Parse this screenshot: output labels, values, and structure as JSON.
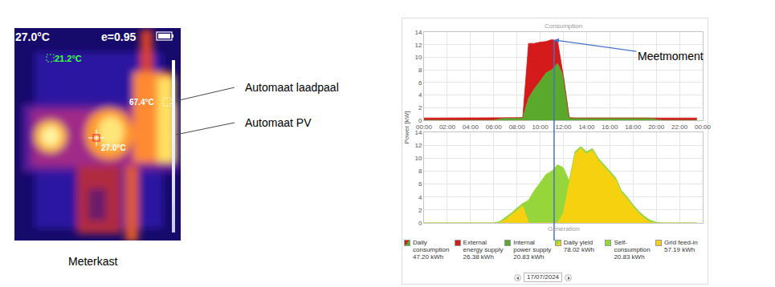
{
  "thermal_image": {
    "temperature": "27.0°C",
    "emissivity": "e=0.95",
    "spot_min": "21.2°C",
    "spot_hot": "67.4°C",
    "center": "27.0°C",
    "caption": "Meterkast",
    "callouts": [
      "Automaat laadpaal",
      "Automaat PV"
    ]
  },
  "y_label": "Power [kW]",
  "date": "17/07/2024",
  "chart_data": [
    {
      "type": "area",
      "title": "Consumption",
      "stacked": true,
      "grid": true,
      "total_label": "Daily consumption",
      "total": "47.20 kWh",
      "x": [
        0,
        0.5,
        1,
        1.5,
        2,
        2.5,
        3,
        3.5,
        4,
        4.5,
        5,
        5.5,
        6,
        6.5,
        7,
        7.5,
        8,
        8.5,
        9,
        9.5,
        10,
        10.5,
        11,
        11.5,
        12,
        12.5,
        13,
        13.5,
        14,
        14.5,
        15,
        15.5,
        16,
        16.5,
        17,
        17.5,
        18,
        18.5,
        19,
        19.5,
        20,
        20.5,
        21,
        21.5,
        22,
        22.5,
        23,
        23.5
      ],
      "xlim": [
        0,
        24
      ],
      "xticks": [
        {
          "value": 0,
          "label": "00:00"
        },
        {
          "value": 2,
          "label": "02:00"
        },
        {
          "value": 4,
          "label": "04:00"
        },
        {
          "value": 6,
          "label": "06:00"
        },
        {
          "value": 8,
          "label": "08:00"
        },
        {
          "value": 10,
          "label": "10:00"
        },
        {
          "value": 12,
          "label": "12:00"
        },
        {
          "value": 14,
          "label": "14:00"
        },
        {
          "value": 16,
          "label": "16:00"
        },
        {
          "value": 18,
          "label": "18:00"
        },
        {
          "value": 20,
          "label": "20:00"
        },
        {
          "value": 22,
          "label": "22:00"
        },
        {
          "value": 24,
          "label": "00:00"
        }
      ],
      "ylim": [
        0,
        14
      ],
      "yticks": [
        0,
        2,
        4,
        6,
        8,
        10,
        12,
        14
      ],
      "series": [
        {
          "name": "External energy supply",
          "color": "#d41a1a",
          "total": "26.38 kWh",
          "values": [
            0.35,
            0.35,
            0.35,
            0.35,
            0.35,
            0.35,
            0.35,
            0.35,
            0.35,
            0.35,
            0.35,
            0.35,
            0.35,
            0.15,
            0,
            0,
            0,
            0,
            8.7,
            7.2,
            6.2,
            5.0,
            4.8,
            3.6,
            0,
            0,
            0,
            0,
            0,
            0,
            0,
            0,
            0,
            0,
            0,
            0,
            0,
            0,
            0,
            0,
            0.25,
            0.35,
            0.35,
            0.35,
            0.35,
            0.35,
            0.35,
            0.35
          ]
        },
        {
          "name": "Internal power supply",
          "color": "#5aa82c",
          "total": "20.83 kWh",
          "values": [
            0,
            0,
            0,
            0,
            0,
            0,
            0,
            0,
            0,
            0,
            0,
            0,
            0,
            0.2,
            0.35,
            0.35,
            0.35,
            0.4,
            3.5,
            5.0,
            6.2,
            7.5,
            8.0,
            9.0,
            7.0,
            0.4,
            0.35,
            0.35,
            0.35,
            0.35,
            0.35,
            0.35,
            0.35,
            0.35,
            0.35,
            0.35,
            0.35,
            0.35,
            0.35,
            0.35,
            0.1,
            0,
            0,
            0,
            0,
            0,
            0,
            0
          ]
        }
      ],
      "annotations": [
        {
          "text": "Meetmoment",
          "x": 11.2
        }
      ]
    },
    {
      "type": "area",
      "title": "Generation",
      "stacked": true,
      "grid": true,
      "tick_labels": "y",
      "total_label": "Daily yield",
      "total": "78.02 kWh",
      "x": [
        0,
        0.5,
        1,
        1.5,
        2,
        2.5,
        3,
        3.5,
        4,
        4.5,
        5,
        5.5,
        6,
        6.5,
        7,
        7.5,
        8,
        8.5,
        9,
        9.5,
        10,
        10.5,
        11,
        11.5,
        12,
        12.5,
        13,
        13.5,
        14,
        14.5,
        15,
        15.5,
        16,
        16.5,
        17,
        17.5,
        18,
        18.5,
        19,
        19.5,
        20,
        20.5,
        21,
        21.5,
        22,
        22.5,
        23,
        23.5
      ],
      "xlim": [
        0,
        24
      ],
      "xticks": [
        0,
        2,
        4,
        6,
        8,
        10,
        12,
        14,
        16,
        18,
        20,
        22,
        24
      ],
      "ylim": [
        0,
        14
      ],
      "yticks": [
        0,
        2,
        4,
        6,
        8,
        10,
        12,
        14
      ],
      "series": [
        {
          "name": "Self-consumption",
          "color": "#97d63a",
          "total": "20.83 kWh",
          "values": [
            0,
            0,
            0,
            0,
            0,
            0,
            0,
            0,
            0,
            0,
            0,
            0,
            0,
            0.2,
            0.35,
            0.35,
            0.35,
            0.4,
            3.5,
            5.0,
            6.2,
            7.5,
            8.0,
            9.0,
            7.0,
            0.4,
            0.35,
            0.35,
            0.35,
            0.35,
            0.35,
            0.35,
            0.35,
            0.35,
            0.35,
            0.35,
            0.35,
            0.35,
            0.35,
            0.35,
            0.1,
            0,
            0,
            0,
            0,
            0,
            0,
            0
          ]
        },
        {
          "name": "Grid feed-in",
          "color": "#f5d10f",
          "total": "57.19 kWh",
          "values": [
            0,
            0,
            0,
            0,
            0,
            0,
            0,
            0,
            0,
            0,
            0,
            0,
            0,
            0,
            0.45,
            1.15,
            1.95,
            2.6,
            0,
            0,
            0,
            0,
            0,
            0,
            1.5,
            6.1,
            10.65,
            11.45,
            10.65,
            11.15,
            9.65,
            8.65,
            7.65,
            6.65,
            4.65,
            3.65,
            2.45,
            1.45,
            0.65,
            0.05,
            0,
            0,
            0,
            0,
            0,
            0,
            0,
            0
          ]
        }
      ]
    }
  ]
}
